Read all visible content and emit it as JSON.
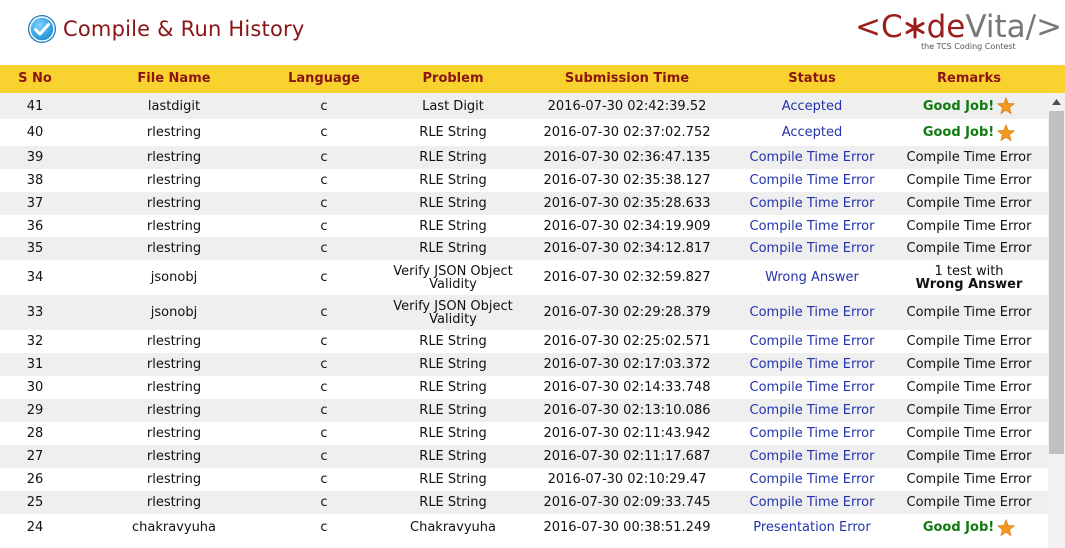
{
  "header": {
    "title": "Compile & Run History",
    "logo": {
      "part1": "<C",
      "part2": "de",
      "part3": "Vita/>",
      "tagline": "the TCS Coding Contest"
    }
  },
  "columns": [
    "S No",
    "File Name",
    "Language",
    "Problem",
    "Submission Time",
    "Status",
    "Remarks"
  ],
  "rows": [
    {
      "sno": "41",
      "file": "lastdigit",
      "lang": "c",
      "problem": "Last Digit",
      "time": "2016-07-30 02:42:39.52",
      "status": "Accepted",
      "remark": "Good Job!",
      "remark_type": "good"
    },
    {
      "sno": "40",
      "file": "rlestring",
      "lang": "c",
      "problem": "RLE String",
      "time": "2016-07-30 02:37:02.752",
      "status": "Accepted",
      "remark": "Good Job!",
      "remark_type": "good"
    },
    {
      "sno": "39",
      "file": "rlestring",
      "lang": "c",
      "problem": "RLE String",
      "time": "2016-07-30 02:36:47.135",
      "status": "Compile Time Error",
      "remark": "Compile Time Error",
      "remark_type": "text"
    },
    {
      "sno": "38",
      "file": "rlestring",
      "lang": "c",
      "problem": "RLE String",
      "time": "2016-07-30 02:35:38.127",
      "status": "Compile Time Error",
      "remark": "Compile Time Error",
      "remark_type": "text"
    },
    {
      "sno": "37",
      "file": "rlestring",
      "lang": "c",
      "problem": "RLE String",
      "time": "2016-07-30 02:35:28.633",
      "status": "Compile Time Error",
      "remark": "Compile Time Error",
      "remark_type": "text"
    },
    {
      "sno": "36",
      "file": "rlestring",
      "lang": "c",
      "problem": "RLE String",
      "time": "2016-07-30 02:34:19.909",
      "status": "Compile Time Error",
      "remark": "Compile Time Error",
      "remark_type": "text"
    },
    {
      "sno": "35",
      "file": "rlestring",
      "lang": "c",
      "problem": "RLE String",
      "time": "2016-07-30 02:34:12.817",
      "status": "Compile Time Error",
      "remark": "Compile Time Error",
      "remark_type": "text"
    },
    {
      "sno": "34",
      "file": "jsonobj",
      "lang": "c",
      "problem": "Verify JSON Object Validity",
      "time": "2016-07-30 02:32:59.827",
      "status": "Wrong Answer",
      "remark": "1 test with",
      "remark_bold": "Wrong Answer",
      "remark_type": "wa"
    },
    {
      "sno": "33",
      "file": "jsonobj",
      "lang": "c",
      "problem": "Verify JSON Object Validity",
      "time": "2016-07-30 02:29:28.379",
      "status": "Compile Time Error",
      "remark": "Compile Time Error",
      "remark_type": "text"
    },
    {
      "sno": "32",
      "file": "rlestring",
      "lang": "c",
      "problem": "RLE String",
      "time": "2016-07-30 02:25:02.571",
      "status": "Compile Time Error",
      "remark": "Compile Time Error",
      "remark_type": "text"
    },
    {
      "sno": "31",
      "file": "rlestring",
      "lang": "c",
      "problem": "RLE String",
      "time": "2016-07-30 02:17:03.372",
      "status": "Compile Time Error",
      "remark": "Compile Time Error",
      "remark_type": "text"
    },
    {
      "sno": "30",
      "file": "rlestring",
      "lang": "c",
      "problem": "RLE String",
      "time": "2016-07-30 02:14:33.748",
      "status": "Compile Time Error",
      "remark": "Compile Time Error",
      "remark_type": "text"
    },
    {
      "sno": "29",
      "file": "rlestring",
      "lang": "c",
      "problem": "RLE String",
      "time": "2016-07-30 02:13:10.086",
      "status": "Compile Time Error",
      "remark": "Compile Time Error",
      "remark_type": "text"
    },
    {
      "sno": "28",
      "file": "rlestring",
      "lang": "c",
      "problem": "RLE String",
      "time": "2016-07-30 02:11:43.942",
      "status": "Compile Time Error",
      "remark": "Compile Time Error",
      "remark_type": "text"
    },
    {
      "sno": "27",
      "file": "rlestring",
      "lang": "c",
      "problem": "RLE String",
      "time": "2016-07-30 02:11:17.687",
      "status": "Compile Time Error",
      "remark": "Compile Time Error",
      "remark_type": "text"
    },
    {
      "sno": "26",
      "file": "rlestring",
      "lang": "c",
      "problem": "RLE String",
      "time": "2016-07-30 02:10:29.47",
      "status": "Compile Time Error",
      "remark": "Compile Time Error",
      "remark_type": "text"
    },
    {
      "sno": "25",
      "file": "rlestring",
      "lang": "c",
      "problem": "RLE String",
      "time": "2016-07-30 02:09:33.745",
      "status": "Compile Time Error",
      "remark": "Compile Time Error",
      "remark_type": "text"
    },
    {
      "sno": "24",
      "file": "chakravyuha",
      "lang": "c",
      "problem": "Chakravyuha",
      "time": "2016-07-30 00:38:51.249",
      "status": "Presentation Error",
      "remark": "Good Job!",
      "remark_type": "good"
    }
  ],
  "colors": {
    "header_bg": "#f8d22f",
    "header_text": "#8b1414",
    "status_text": "#2233aa",
    "good_text": "#0f7a0f",
    "row_alt": "#efefef"
  },
  "icons": {
    "title_icon": "check-circle-icon",
    "remark_icon": "star-icon",
    "scroll": "scroll-up-arrow-icon"
  }
}
